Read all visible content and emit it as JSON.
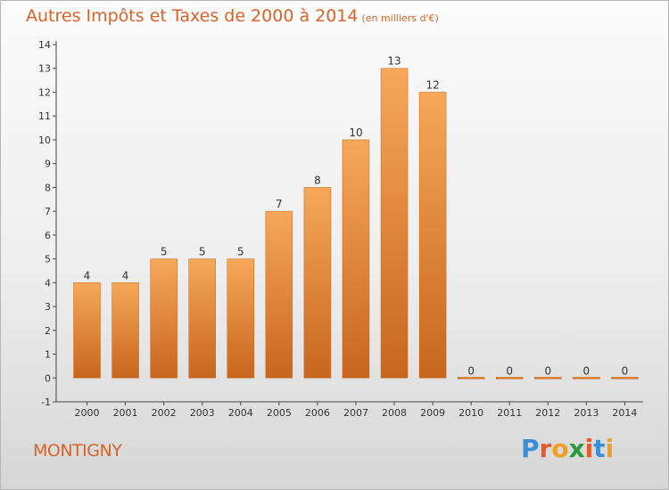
{
  "chart_data": {
    "type": "bar",
    "title": "Autres Impôts et Taxes de 2000 à 2014",
    "subtitle": "(en milliers d'€)",
    "categories": [
      "2000",
      "2001",
      "2002",
      "2003",
      "2004",
      "2005",
      "2006",
      "2007",
      "2008",
      "2009",
      "2010",
      "2011",
      "2012",
      "2013",
      "2014"
    ],
    "values": [
      4,
      4,
      5,
      5,
      5,
      7,
      8,
      10,
      13,
      12,
      0,
      0,
      0,
      0,
      0
    ],
    "data_labels": [
      "4",
      "4",
      "5",
      "5",
      "5",
      "7",
      "8",
      "10",
      "13",
      "12",
      "0",
      "0",
      "0",
      "0",
      "0"
    ],
    "ylim": [
      -1,
      14
    ],
    "yticks": [
      "-1",
      "0",
      "1",
      "2",
      "3",
      "4",
      "5",
      "6",
      "7",
      "8",
      "9",
      "10",
      "11",
      "12",
      "13",
      "14"
    ],
    "xlabel": "",
    "ylabel": "",
    "grid": false,
    "bar_color": "#e8822e"
  },
  "footer": {
    "city": "MONTIGNY",
    "logo_letters": [
      "P",
      "r",
      "o",
      "x",
      "i",
      "t",
      "i"
    ],
    "logo_colors": [
      "#3a8fd8",
      "#e85a2a",
      "#f0a020",
      "#2a9a3a",
      "#e85a2a",
      "#3a8fd8",
      "#f0a020"
    ]
  }
}
